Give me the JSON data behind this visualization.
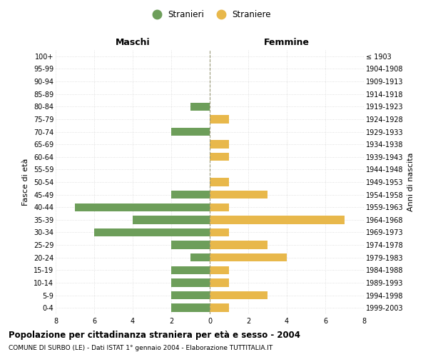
{
  "age_groups_bottom_to_top": [
    "0-4",
    "5-9",
    "10-14",
    "15-19",
    "20-24",
    "25-29",
    "30-34",
    "35-39",
    "40-44",
    "45-49",
    "50-54",
    "55-59",
    "60-64",
    "65-69",
    "70-74",
    "75-79",
    "80-84",
    "85-89",
    "90-94",
    "95-99",
    "100+"
  ],
  "birth_years_bottom_to_top": [
    "1999-2003",
    "1994-1998",
    "1989-1993",
    "1984-1988",
    "1979-1983",
    "1974-1978",
    "1969-1973",
    "1964-1968",
    "1959-1963",
    "1954-1958",
    "1949-1953",
    "1944-1948",
    "1939-1943",
    "1934-1938",
    "1929-1933",
    "1924-1928",
    "1919-1923",
    "1914-1918",
    "1909-1913",
    "1904-1908",
    "≤ 1903"
  ],
  "males_bottom_to_top": [
    2,
    2,
    2,
    2,
    1,
    2,
    6,
    4,
    7,
    2,
    0,
    0,
    0,
    0,
    2,
    0,
    1,
    0,
    0,
    0,
    0
  ],
  "females_bottom_to_top": [
    1,
    3,
    1,
    1,
    4,
    3,
    1,
    7,
    1,
    3,
    1,
    0,
    1,
    1,
    0,
    1,
    0,
    0,
    0,
    0,
    0
  ],
  "male_color": "#6d9e5a",
  "female_color": "#e8b84b",
  "title": "Popolazione per cittadinanza straniera per età e sesso - 2004",
  "subtitle": "COMUNE DI SURBO (LE) - Dati ISTAT 1° gennaio 2004 - Elaborazione TUTTITALIA.IT",
  "header_left": "Maschi",
  "header_right": "Femmine",
  "ylabel_left": "Fasce di età",
  "ylabel_right": "Anni di nascita",
  "legend_male": "Stranieri",
  "legend_female": "Straniere",
  "xlim": 8,
  "background_color": "#ffffff",
  "grid_color": "#d8d8d8",
  "grid_linestyle": ":",
  "center_line_color": "#999977",
  "center_line_style": "--"
}
